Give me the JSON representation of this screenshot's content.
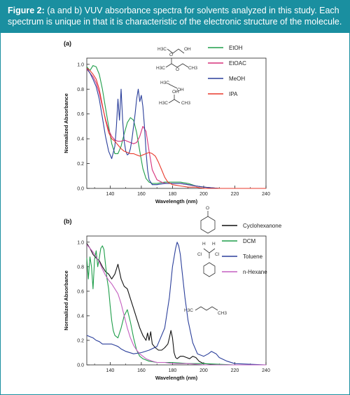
{
  "caption": {
    "label": "Figure 2:",
    "text": "(a and b) VUV absorbance spectra for solvents analyzed in this study. Each spectrum is unique in that it is characteristic of the electronic structure of the molecule."
  },
  "chart_data": [
    {
      "type": "line",
      "panel_label": "(a)",
      "xlabel": "Wavelength (nm)",
      "ylabel": "Normalized Absorbance",
      "xlim": [
        125,
        240
      ],
      "ylim": [
        0,
        1.05
      ],
      "x_ticks": [
        140,
        160,
        180,
        200,
        220,
        240
      ],
      "y_ticks": [
        "0.0",
        "0.2",
        "0.4",
        "0.6",
        "0.8",
        "1.0"
      ],
      "legend_position": "top-right",
      "series": [
        {
          "name": "EtOH",
          "color": "#1f9e4a",
          "x": [
            125,
            127,
            129,
            131,
            133,
            135,
            137,
            139,
            141,
            143,
            145,
            147,
            149,
            151,
            153,
            155,
            157,
            159,
            161,
            163,
            165,
            167,
            170,
            175,
            180,
            185,
            190,
            195,
            200,
            210,
            220,
            240
          ],
          "y": [
            0.98,
            0.95,
            0.99,
            0.98,
            0.92,
            0.8,
            0.65,
            0.5,
            0.36,
            0.28,
            0.28,
            0.34,
            0.44,
            0.53,
            0.57,
            0.55,
            0.45,
            0.3,
            0.16,
            0.08,
            0.05,
            0.04,
            0.04,
            0.05,
            0.05,
            0.05,
            0.04,
            0.02,
            0.01,
            0.0,
            0.0,
            0.0
          ]
        },
        {
          "name": "EtOAC",
          "color": "#d6317a",
          "x": [
            125,
            127,
            129,
            131,
            133,
            135,
            137,
            139,
            141,
            143,
            145,
            147,
            149,
            151,
            153,
            155,
            157,
            159,
            161,
            163,
            165,
            167,
            170,
            173,
            176,
            180,
            185,
            190,
            195,
            200,
            210,
            220,
            240
          ],
          "y": [
            0.96,
            0.93,
            0.9,
            0.85,
            0.77,
            0.66,
            0.56,
            0.47,
            0.42,
            0.39,
            0.38,
            0.38,
            0.39,
            0.38,
            0.37,
            0.36,
            0.37,
            0.42,
            0.5,
            0.46,
            0.3,
            0.15,
            0.07,
            0.05,
            0.04,
            0.04,
            0.04,
            0.03,
            0.02,
            0.01,
            0.0,
            0.0,
            0.0
          ]
        },
        {
          "name": "MeOH",
          "color": "#2b3f9b",
          "x": [
            125,
            127,
            129,
            131,
            133,
            135,
            137,
            139,
            141,
            143,
            144,
            145,
            146,
            147,
            148,
            149,
            150,
            151,
            152,
            153,
            154,
            155,
            156,
            157,
            158,
            159,
            160,
            161,
            162,
            163,
            164,
            165,
            167,
            170,
            175,
            180,
            185,
            190,
            195,
            200,
            210,
            220,
            240
          ],
          "y": [
            0.97,
            0.93,
            0.88,
            0.82,
            0.72,
            0.57,
            0.42,
            0.3,
            0.24,
            0.34,
            0.5,
            0.72,
            0.55,
            0.8,
            0.55,
            0.38,
            0.3,
            0.27,
            0.28,
            0.32,
            0.4,
            0.5,
            0.6,
            0.72,
            0.8,
            0.7,
            0.75,
            0.66,
            0.5,
            0.3,
            0.15,
            0.07,
            0.03,
            0.03,
            0.04,
            0.04,
            0.04,
            0.03,
            0.02,
            0.01,
            0.0,
            0.0,
            0.0
          ]
        },
        {
          "name": "IPA",
          "color": "#e8392b",
          "x": [
            125,
            127,
            129,
            131,
            133,
            135,
            137,
            139,
            141,
            143,
            145,
            147,
            149,
            151,
            153,
            155,
            157,
            159,
            161,
            163,
            165,
            167,
            169,
            171,
            173,
            175,
            177,
            180,
            185,
            190,
            195,
            200,
            210,
            220,
            240
          ],
          "y": [
            0.97,
            0.95,
            0.92,
            0.88,
            0.8,
            0.67,
            0.55,
            0.45,
            0.4,
            0.38,
            0.35,
            0.32,
            0.3,
            0.29,
            0.28,
            0.28,
            0.27,
            0.26,
            0.27,
            0.28,
            0.29,
            0.28,
            0.26,
            0.21,
            0.15,
            0.09,
            0.05,
            0.03,
            0.02,
            0.01,
            0.01,
            0.0,
            0.0,
            0.0,
            0.0
          ]
        }
      ]
    },
    {
      "type": "line",
      "panel_label": "(b)",
      "xlabel": "Wavelength (nm)",
      "ylabel": "Normalized Absorbance",
      "xlim": [
        125,
        240
      ],
      "ylim": [
        0,
        1.05
      ],
      "x_ticks": [
        140,
        160,
        180,
        200,
        220,
        240
      ],
      "y_ticks": [
        "0.0",
        "0.2",
        "0.4",
        "0.6",
        "0.8",
        "1.0"
      ],
      "legend_position": "top-right",
      "series": [
        {
          "name": "Cyclohexanone",
          "color": "#111111",
          "x": [
            125,
            127,
            129,
            131,
            133,
            135,
            137,
            139,
            141,
            143,
            145,
            147,
            149,
            151,
            153,
            155,
            157,
            159,
            161,
            163,
            164,
            165,
            166,
            167,
            169,
            171,
            173,
            175,
            177,
            178,
            179,
            180,
            181,
            182,
            183,
            185,
            187,
            189,
            191,
            193,
            195,
            197,
            200,
            210,
            220,
            240
          ],
          "y": [
            0.99,
            0.95,
            0.9,
            0.87,
            0.85,
            0.8,
            0.76,
            0.74,
            0.7,
            0.74,
            0.82,
            0.7,
            0.64,
            0.62,
            0.54,
            0.46,
            0.38,
            0.3,
            0.24,
            0.2,
            0.26,
            0.2,
            0.27,
            0.17,
            0.14,
            0.12,
            0.12,
            0.14,
            0.17,
            0.22,
            0.28,
            0.22,
            0.1,
            0.06,
            0.05,
            0.07,
            0.07,
            0.06,
            0.05,
            0.07,
            0.06,
            0.03,
            0.01,
            0.0,
            0.0,
            0.0
          ]
        },
        {
          "name": "DCM",
          "color": "#1f9e4a",
          "x": [
            125,
            126,
            127,
            128,
            129,
            130,
            131,
            132,
            133,
            134,
            135,
            136,
            137,
            138,
            139,
            140,
            141,
            142,
            143,
            145,
            147,
            149,
            151,
            153,
            155,
            157,
            159,
            161,
            163,
            165,
            170,
            175,
            180,
            190,
            200,
            220,
            240
          ],
          "y": [
            0.87,
            0.7,
            0.88,
            0.8,
            0.62,
            0.86,
            0.93,
            0.8,
            0.87,
            0.95,
            0.97,
            0.94,
            0.82,
            0.7,
            0.62,
            0.48,
            0.36,
            0.28,
            0.24,
            0.22,
            0.3,
            0.4,
            0.45,
            0.35,
            0.22,
            0.12,
            0.07,
            0.05,
            0.04,
            0.03,
            0.02,
            0.02,
            0.02,
            0.01,
            0.01,
            0.0,
            0.0
          ]
        },
        {
          "name": "Toluene",
          "color": "#2b3f9b",
          "x": [
            125,
            127,
            129,
            131,
            133,
            135,
            137,
            139,
            141,
            143,
            145,
            147,
            150,
            155,
            160,
            165,
            170,
            175,
            178,
            180,
            182,
            183,
            184,
            185,
            186,
            188,
            190,
            193,
            196,
            200,
            203,
            205,
            208,
            210,
            215,
            220,
            240
          ],
          "y": [
            0.24,
            0.23,
            0.22,
            0.2,
            0.19,
            0.17,
            0.17,
            0.17,
            0.17,
            0.16,
            0.15,
            0.13,
            0.11,
            0.09,
            0.1,
            0.12,
            0.15,
            0.3,
            0.55,
            0.8,
            0.95,
            1.0,
            0.97,
            0.9,
            0.78,
            0.55,
            0.36,
            0.18,
            0.09,
            0.07,
            0.09,
            0.11,
            0.09,
            0.06,
            0.03,
            0.01,
            0.0
          ]
        },
        {
          "name": "n-Hexane",
          "color": "#c45fc0",
          "x": [
            125,
            127,
            129,
            131,
            133,
            135,
            137,
            139,
            141,
            143,
            145,
            147,
            149,
            151,
            153,
            155,
            157,
            159,
            161,
            163,
            165,
            167,
            170,
            175,
            180,
            190,
            200,
            220,
            240
          ],
          "y": [
            0.98,
            0.95,
            0.92,
            0.88,
            0.84,
            0.78,
            0.73,
            0.69,
            0.66,
            0.62,
            0.58,
            0.5,
            0.4,
            0.3,
            0.22,
            0.16,
            0.12,
            0.09,
            0.07,
            0.05,
            0.04,
            0.03,
            0.02,
            0.02,
            0.01,
            0.01,
            0.0,
            0.0,
            0.0
          ]
        }
      ]
    }
  ],
  "structures": {
    "etoh": [
      "H3C",
      "OH"
    ],
    "etoac": [
      "O",
      "H3C",
      "O",
      "CH3"
    ],
    "meoh": [
      "H3C",
      "OH"
    ],
    "ipa": [
      "OH",
      "H3C",
      "CH3"
    ],
    "dcm": [
      "H",
      "H",
      "Cl",
      "Cl"
    ],
    "hexane": [
      "H3C",
      "CH3"
    ],
    "cyclohexanone": [
      "O"
    ]
  }
}
